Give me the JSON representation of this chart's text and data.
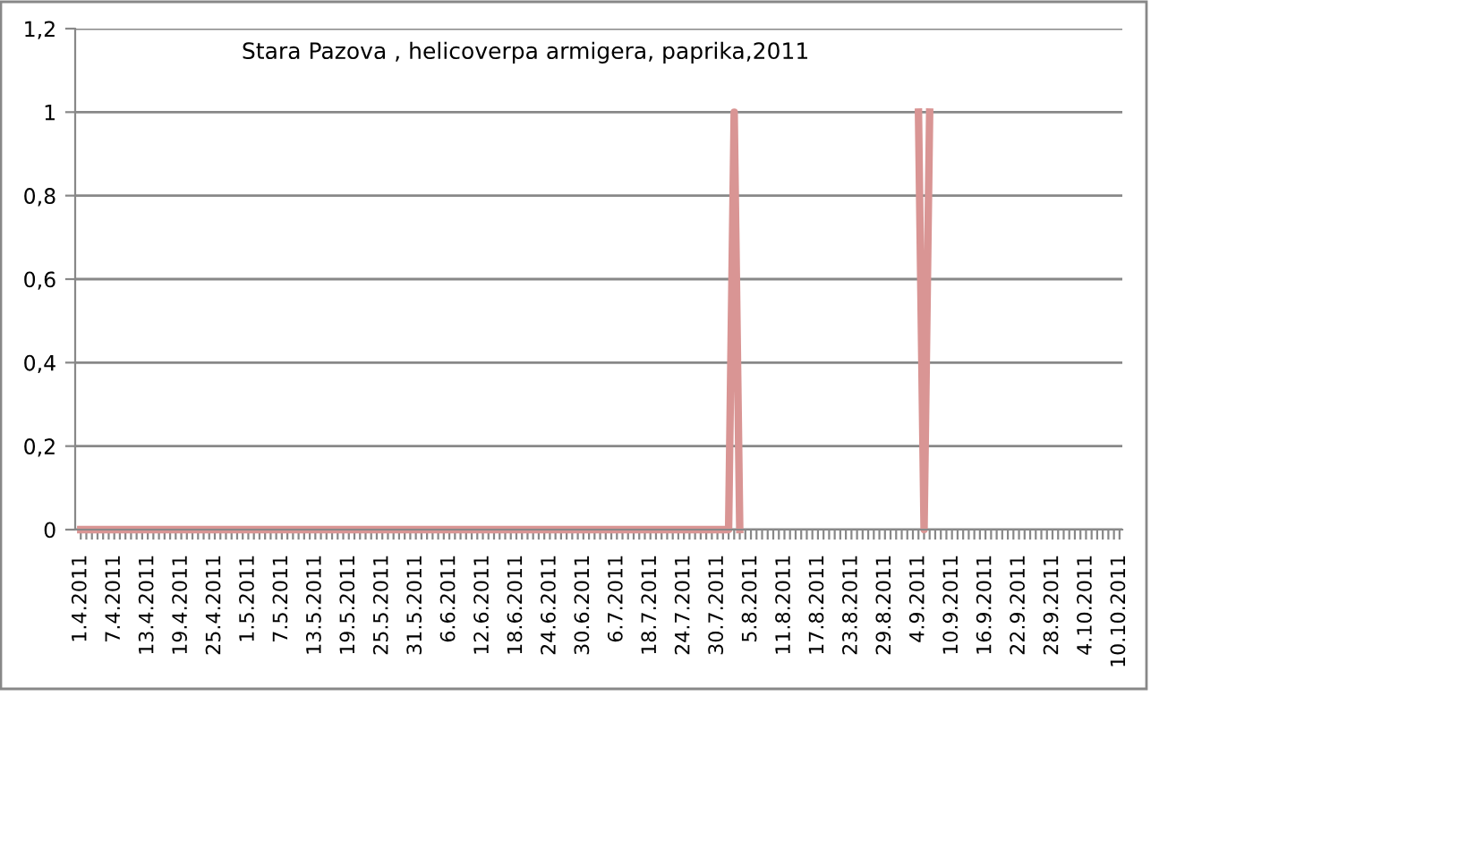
{
  "chart_data": {
    "type": "line",
    "title": "Stara Pazova , helicoverpa armigera, paprika,2011",
    "categories": [
      "1.4.2011",
      null,
      null,
      null,
      null,
      null,
      "7.4.2011",
      null,
      null,
      null,
      null,
      null,
      "13.4.2011",
      null,
      null,
      null,
      null,
      null,
      "19.4.2011",
      null,
      null,
      null,
      null,
      null,
      "25.4.2011",
      null,
      null,
      null,
      null,
      null,
      "1.5.2011",
      null,
      null,
      null,
      null,
      null,
      "7.5.2011",
      null,
      null,
      null,
      null,
      null,
      "13.5.2011",
      null,
      null,
      null,
      null,
      null,
      "19.5.2011",
      null,
      null,
      null,
      null,
      null,
      "25.5.2011",
      null,
      null,
      null,
      null,
      null,
      "31.5.2011",
      null,
      null,
      null,
      null,
      null,
      "6.6.2011",
      null,
      null,
      null,
      null,
      null,
      "12.6.2011",
      null,
      null,
      null,
      null,
      null,
      "18.6.2011",
      null,
      null,
      null,
      null,
      null,
      "24.6.2011",
      null,
      null,
      null,
      null,
      null,
      "30.6.2011",
      null,
      null,
      null,
      null,
      null,
      "6.7.2011",
      null,
      null,
      null,
      null,
      null,
      "18.7.2011",
      null,
      null,
      null,
      null,
      null,
      "24.7.2011",
      null,
      null,
      null,
      null,
      null,
      "30.7.2011",
      null,
      null,
      null,
      null,
      null,
      "5.8.2011",
      null,
      null,
      null,
      null,
      null,
      "11.8.2011",
      null,
      null,
      null,
      null,
      null,
      "17.8.2011",
      null,
      null,
      null,
      null,
      null,
      "23.8.2011",
      null,
      null,
      null,
      null,
      null,
      "29.8.2011",
      null,
      null,
      null,
      null,
      null,
      "4.9.2011",
      null,
      null,
      null,
      null,
      null,
      "10.9.2011",
      null,
      null,
      null,
      null,
      null,
      "16.9.2011",
      null,
      null,
      null,
      null,
      null,
      "22.9.2011",
      null,
      null,
      null,
      null,
      null,
      "28.9.2011",
      null,
      null,
      null,
      null,
      null,
      "4.10.2011",
      null,
      null,
      null,
      null,
      null,
      "10.10.2011"
    ],
    "series": [
      {
        "color": "#d99594",
        "values": [
          0,
          0,
          0,
          0,
          0,
          0,
          0,
          0,
          0,
          0,
          0,
          0,
          0,
          0,
          0,
          0,
          0,
          0,
          0,
          0,
          0,
          0,
          0,
          0,
          0,
          0,
          0,
          0,
          0,
          0,
          0,
          0,
          0,
          0,
          0,
          0,
          0,
          0,
          0,
          0,
          0,
          0,
          0,
          0,
          0,
          0,
          0,
          0,
          0,
          0,
          0,
          0,
          0,
          0,
          0,
          0,
          0,
          0,
          0,
          0,
          0,
          0,
          0,
          0,
          0,
          0,
          0,
          0,
          0,
          0,
          0,
          0,
          0,
          0,
          0,
          0,
          0,
          0,
          0,
          0,
          0,
          0,
          0,
          0,
          0,
          0,
          0,
          0,
          0,
          0,
          0,
          0,
          0,
          0,
          0,
          0,
          0,
          0,
          0,
          0,
          0,
          0,
          0,
          0,
          0,
          0,
          0,
          0,
          0,
          0,
          0,
          0,
          0,
          0,
          0,
          0,
          0,
          1,
          0,
          null,
          null,
          null,
          null,
          null,
          null,
          null,
          null,
          null,
          null,
          null,
          null,
          null,
          null,
          null,
          null,
          null,
          null,
          null,
          null,
          null,
          null,
          null,
          null,
          null,
          null,
          null,
          null,
          null,
          null,
          null,
          1,
          0,
          1,
          null,
          null,
          null,
          null,
          null,
          null,
          null,
          null,
          null,
          null,
          null,
          null,
          null,
          null,
          null,
          null,
          null,
          null,
          null,
          null,
          null,
          null,
          null,
          null,
          null,
          null,
          null,
          null,
          null,
          null,
          null,
          null,
          null,
          null
        ]
      }
    ],
    "ylim": [
      0,
      1.2
    ],
    "yticks": [
      0,
      {
        "value": 0.2,
        "label": "0,2"
      },
      {
        "value": 0.4,
        "label": "0,4"
      },
      {
        "value": 0.6,
        "label": "0,6"
      },
      {
        "value": 0.8,
        "label": "0,8"
      },
      1,
      {
        "value": 1.2,
        "label": "1,2"
      }
    ],
    "grid": "y",
    "legend": false,
    "marker": "none",
    "line_style": "solid"
  }
}
